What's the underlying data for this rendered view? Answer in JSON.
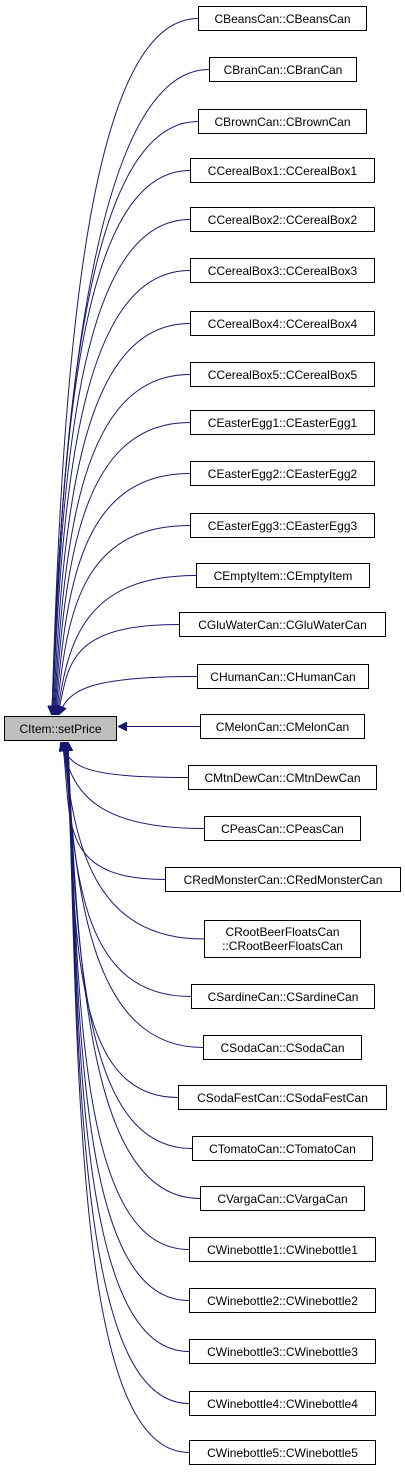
{
  "colors": {
    "edge": "#191970",
    "root_fill": "#bfbfbf",
    "node_fill": "#ffffff",
    "border": "#000000"
  },
  "root": {
    "label": "CItem::setPrice"
  },
  "callers": [
    {
      "label": "CBeansCan::CBeansCan"
    },
    {
      "label": "CBranCan::CBranCan"
    },
    {
      "label": "CBrownCan::CBrownCan"
    },
    {
      "label": "CCerealBox1::CCerealBox1"
    },
    {
      "label": "CCerealBox2::CCerealBox2"
    },
    {
      "label": "CCerealBox3::CCerealBox3"
    },
    {
      "label": "CCerealBox4::CCerealBox4"
    },
    {
      "label": "CCerealBox5::CCerealBox5"
    },
    {
      "label": "CEasterEgg1::CEasterEgg1"
    },
    {
      "label": "CEasterEgg2::CEasterEgg2"
    },
    {
      "label": "CEasterEgg3::CEasterEgg3"
    },
    {
      "label": "CEmptyItem::CEmptyItem"
    },
    {
      "label": "CGluWaterCan::CGluWaterCan"
    },
    {
      "label": "CHumanCan::CHumanCan"
    },
    {
      "label": "CMelonCan::CMelonCan"
    },
    {
      "label": "CMtnDewCan::CMtnDewCan"
    },
    {
      "label": "CPeasCan::CPeasCan"
    },
    {
      "label": "CRedMonsterCan::CRedMonsterCan"
    },
    {
      "label": "CRootBeerFloatsCan",
      "label2": "::CRootBeerFloatsCan"
    },
    {
      "label": "CSardineCan::CSardineCan"
    },
    {
      "label": "CSodaCan::CSodaCan"
    },
    {
      "label": "CSodaFestCan::CSodaFestCan"
    },
    {
      "label": "CTomatoCan::CTomatoCan"
    },
    {
      "label": "CVargaCan::CVargaCan"
    },
    {
      "label": "CWinebottle1::CWinebottle1"
    },
    {
      "label": "CWinebottle2::CWinebottle2"
    },
    {
      "label": "CWinebottle3::CWinebottle3"
    },
    {
      "label": "CWinebottle4::CWinebottle4"
    },
    {
      "label": "CWinebottle5::CWinebottle5"
    }
  ]
}
